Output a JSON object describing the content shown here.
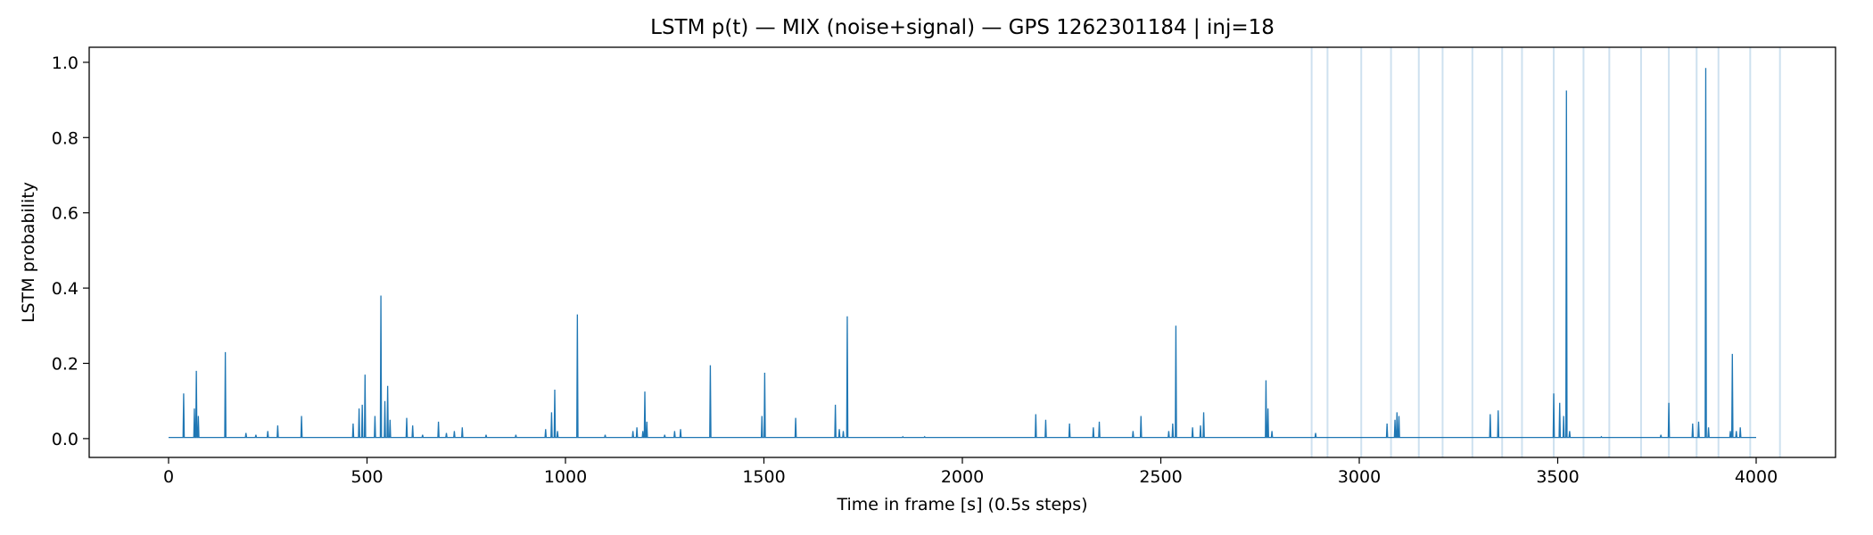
{
  "chart_data": {
    "type": "line",
    "title": "LSTM p(t) — MIX (noise+signal) — GPS 1262301184 | inj=18",
    "xlabel": "Time in frame [s] (0.5s steps)",
    "ylabel": "LSTM probability",
    "xlim": [
      -200,
      4200
    ],
    "ylim": [
      -0.05,
      1.04
    ],
    "xticks": [
      0,
      500,
      1000,
      1500,
      2000,
      2500,
      3000,
      3500,
      4000
    ],
    "yticks": [
      0.0,
      0.2,
      0.4,
      0.6,
      0.8,
      1.0
    ],
    "xtick_labels": [
      "0",
      "500",
      "1000",
      "1500",
      "2000",
      "2500",
      "3000",
      "3500",
      "4000"
    ],
    "ytick_labels": [
      "0.0",
      "0.2",
      "0.4",
      "0.6",
      "0.8",
      "1.0"
    ],
    "grid": false,
    "line_color": "#1f77b4",
    "injection_color": "#1f77b4",
    "x_end": 4000,
    "baseline": 0.003,
    "injection_times": [
      2880,
      2920,
      3005,
      3080,
      3150,
      3210,
      3285,
      3360,
      3410,
      3490,
      3565,
      3630,
      3710,
      3780,
      3850,
      3905,
      3985,
      4060
    ],
    "series": [
      {
        "peaks": [
          [
            38,
            0.12
          ],
          [
            65,
            0.08
          ],
          [
            70,
            0.18
          ],
          [
            75,
            0.06
          ],
          [
            143,
            0.23
          ],
          [
            195,
            0.015
          ],
          [
            220,
            0.01
          ],
          [
            250,
            0.02
          ],
          [
            275,
            0.035
          ],
          [
            335,
            0.06
          ],
          [
            465,
            0.04
          ],
          [
            480,
            0.08
          ],
          [
            488,
            0.09
          ],
          [
            495,
            0.17
          ],
          [
            520,
            0.06
          ],
          [
            535,
            0.38
          ],
          [
            545,
            0.1
          ],
          [
            552,
            0.14
          ],
          [
            558,
            0.05
          ],
          [
            600,
            0.055
          ],
          [
            615,
            0.035
          ],
          [
            640,
            0.01
          ],
          [
            680,
            0.045
          ],
          [
            700,
            0.015
          ],
          [
            720,
            0.02
          ],
          [
            740,
            0.03
          ],
          [
            800,
            0.01
          ],
          [
            875,
            0.01
          ],
          [
            950,
            0.025
          ],
          [
            965,
            0.07
          ],
          [
            973,
            0.13
          ],
          [
            980,
            0.02
          ],
          [
            1030,
            0.33
          ],
          [
            1100,
            0.01
          ],
          [
            1170,
            0.02
          ],
          [
            1180,
            0.03
          ],
          [
            1195,
            0.02
          ],
          [
            1200,
            0.125
          ],
          [
            1205,
            0.045
          ],
          [
            1250,
            0.01
          ],
          [
            1275,
            0.02
          ],
          [
            1290,
            0.025
          ],
          [
            1365,
            0.195
          ],
          [
            1495,
            0.06
          ],
          [
            1502,
            0.175
          ],
          [
            1580,
            0.055
          ],
          [
            1680,
            0.09
          ],
          [
            1690,
            0.025
          ],
          [
            1700,
            0.02
          ],
          [
            1710,
            0.325
          ],
          [
            1850,
            0.005
          ],
          [
            1905,
            0.005
          ],
          [
            2185,
            0.065
          ],
          [
            2210,
            0.05
          ],
          [
            2270,
            0.04
          ],
          [
            2330,
            0.03
          ],
          [
            2345,
            0.045
          ],
          [
            2430,
            0.02
          ],
          [
            2450,
            0.06
          ],
          [
            2520,
            0.02
          ],
          [
            2530,
            0.04
          ],
          [
            2538,
            0.3
          ],
          [
            2580,
            0.03
          ],
          [
            2600,
            0.035
          ],
          [
            2608,
            0.07
          ],
          [
            2765,
            0.155
          ],
          [
            2770,
            0.08
          ],
          [
            2780,
            0.02
          ],
          [
            2890,
            0.015
          ],
          [
            3070,
            0.04
          ],
          [
            3090,
            0.05
          ],
          [
            3095,
            0.07
          ],
          [
            3100,
            0.06
          ],
          [
            3330,
            0.065
          ],
          [
            3350,
            0.075
          ],
          [
            3490,
            0.12
          ],
          [
            3505,
            0.095
          ],
          [
            3515,
            0.06
          ],
          [
            3522,
            0.925
          ],
          [
            3530,
            0.02
          ],
          [
            3610,
            0.005
          ],
          [
            3760,
            0.01
          ],
          [
            3780,
            0.095
          ],
          [
            3840,
            0.04
          ],
          [
            3855,
            0.045
          ],
          [
            3873,
            0.985
          ],
          [
            3880,
            0.03
          ],
          [
            3935,
            0.02
          ],
          [
            3940,
            0.225
          ],
          [
            3950,
            0.02
          ],
          [
            3960,
            0.03
          ]
        ]
      }
    ]
  }
}
